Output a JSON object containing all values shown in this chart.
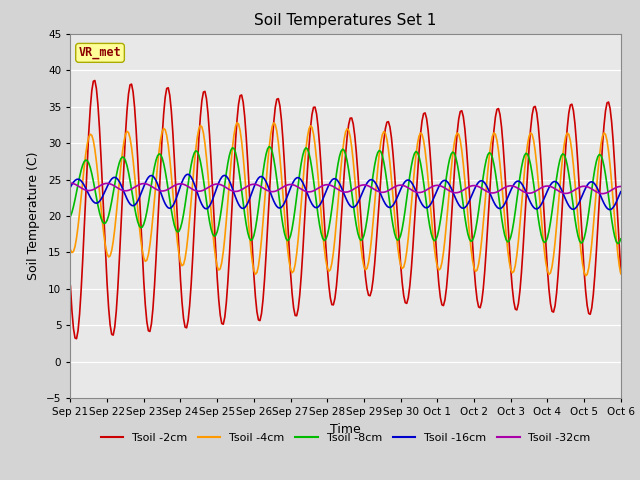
{
  "title": "Soil Temperatures Set 1",
  "xlabel": "Time",
  "ylabel": "Soil Temperature (C)",
  "ylim": [
    -5,
    45
  ],
  "yticks": [
    -5,
    0,
    5,
    10,
    15,
    20,
    25,
    30,
    35,
    40,
    45
  ],
  "annotation_text": "VR_met",
  "annotation_bg": "#ffff99",
  "annotation_border": "#aaaa00",
  "series": [
    {
      "label": "Tsoil -2cm",
      "color": "#cc0000",
      "lw": 1.2
    },
    {
      "label": "Tsoil -4cm",
      "color": "#ff9900",
      "lw": 1.2
    },
    {
      "label": "Tsoil -8cm",
      "color": "#00bb00",
      "lw": 1.2
    },
    {
      "label": "Tsoil -16cm",
      "color": "#0000cc",
      "lw": 1.2
    },
    {
      "label": "Tsoil -32cm",
      "color": "#aa00aa",
      "lw": 1.2
    }
  ],
  "x_tick_labels": [
    "Sep 21",
    "Sep 22",
    "Sep 23",
    "Sep 24",
    "Sep 25",
    "Sep 26",
    "Sep 27",
    "Sep 28",
    "Sep 29",
    "Sep 30",
    "Oct 1",
    "Oct 2",
    "Oct 3",
    "Oct 4",
    "Oct 5",
    "Oct 6"
  ],
  "fig_bg": "#d4d4d4",
  "ax_bg": "#e8e8e8",
  "grid_color": "#ffffff"
}
